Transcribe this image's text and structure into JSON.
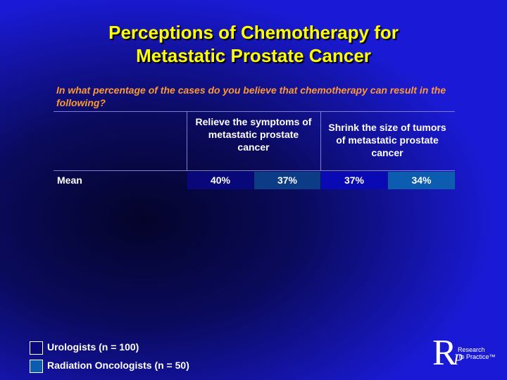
{
  "slide": {
    "title_line1": "Perceptions of Chemotherapy for",
    "title_line2": "Metastatic Prostate Cancer",
    "question": "In what percentage of the cases do you believe that chemotherapy can result in the following?"
  },
  "table": {
    "columns": [
      "Relieve the symptoms of metastatic prostate cancer",
      "Shrink the size of tumors of metastatic prostate cancer"
    ],
    "row_label": "Mean",
    "values": [
      "40%",
      "37%",
      "37%",
      "34%"
    ]
  },
  "legend": {
    "urologists": "Urologists  (n = 100)",
    "radiation": "Radiation Oncologists  (n = 50)",
    "colors": {
      "urologists": "#08087a",
      "radiation": "#0c5cb0"
    }
  },
  "logo": {
    "letter_r": "R",
    "letter_p": "P",
    "line1": "Research",
    "line2": "To Practice™"
  }
}
